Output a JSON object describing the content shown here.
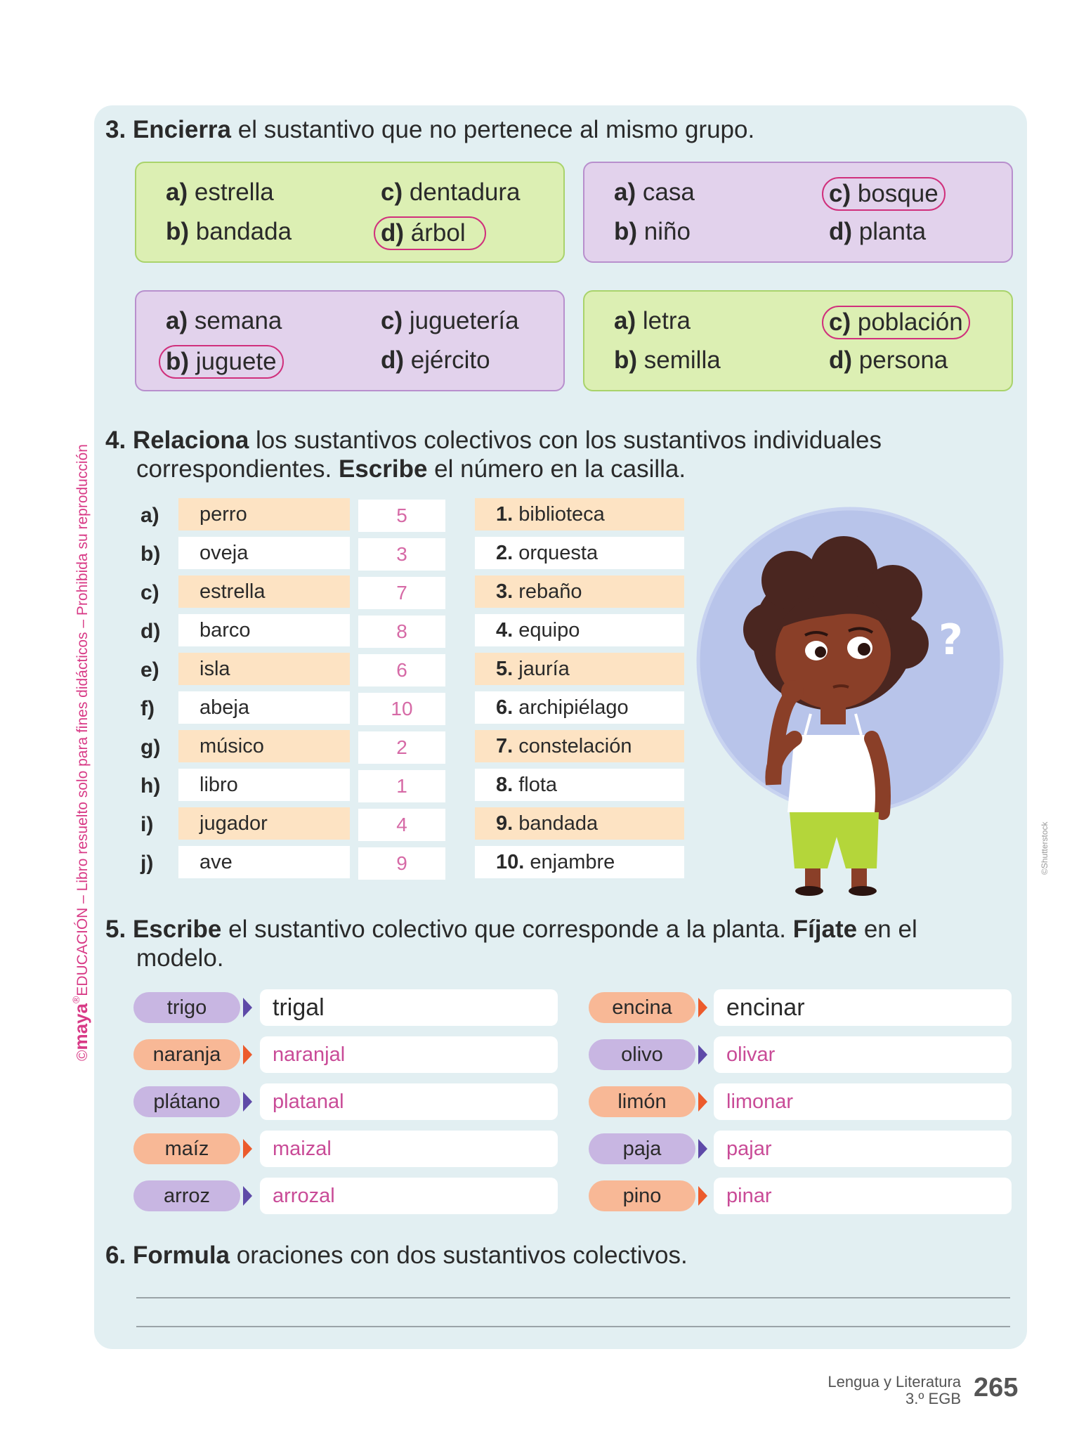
{
  "q3": {
    "number": "3.",
    "bold": "Encierra",
    "rest": " el sustantivo que no pertenece al mismo grupo.",
    "groups": [
      {
        "options": [
          {
            "letter": "a)",
            "word": "estrella"
          },
          {
            "letter": "b)",
            "word": "bandada"
          },
          {
            "letter": "c)",
            "word": "dentadura"
          },
          {
            "letter": "d)",
            "word": "árbol"
          }
        ]
      },
      {
        "options": [
          {
            "letter": "a)",
            "word": "casa"
          },
          {
            "letter": "b)",
            "word": "niño"
          },
          {
            "letter": "c)",
            "word": "bosque"
          },
          {
            "letter": "d)",
            "word": "planta"
          }
        ]
      },
      {
        "options": [
          {
            "letter": "a)",
            "word": "semana"
          },
          {
            "letter": "b)",
            "word": "juguete"
          },
          {
            "letter": "c)",
            "word": "juguetería"
          },
          {
            "letter": "d)",
            "word": "ejército"
          }
        ]
      },
      {
        "options": [
          {
            "letter": "a)",
            "word": "letra"
          },
          {
            "letter": "b)",
            "word": "semilla"
          },
          {
            "letter": "c)",
            "word": "población"
          },
          {
            "letter": "d)",
            "word": "persona"
          }
        ]
      }
    ]
  },
  "q4": {
    "number": "4.",
    "bold1": "Relaciona",
    "text1": " los sustantivos colectivos con los sustantivos individuales",
    "text2": "correspondientes. ",
    "bold2": "Escribe",
    "text3": " el número en la casilla.",
    "rows": [
      {
        "letter": "a)",
        "word": "perro",
        "answer": "5",
        "coll_num": "1.",
        "coll": "biblioteca"
      },
      {
        "letter": "b)",
        "word": "oveja",
        "answer": "3",
        "coll_num": "2.",
        "coll": "orquesta"
      },
      {
        "letter": "c)",
        "word": "estrella",
        "answer": "7",
        "coll_num": "3.",
        "coll": "rebaño"
      },
      {
        "letter": "d)",
        "word": "barco",
        "answer": "8",
        "coll_num": "4.",
        "coll": "equipo"
      },
      {
        "letter": "e)",
        "word": "isla",
        "answer": "6",
        "coll_num": "5.",
        "coll": "jauría"
      },
      {
        "letter": "f)",
        "word": "abeja",
        "answer": "10",
        "coll_num": "6.",
        "coll": "archipiélago"
      },
      {
        "letter": "g)",
        "word": "músico",
        "answer": "2",
        "coll_num": "7.",
        "coll": "constelación"
      },
      {
        "letter": "h)",
        "word": "libro",
        "answer": "1",
        "coll_num": "8.",
        "coll": "flota"
      },
      {
        "letter": "i)",
        "word": "jugador",
        "answer": "4",
        "coll_num": "9.",
        "coll": "bandada"
      },
      {
        "letter": "j)",
        "word": "ave",
        "answer": "9",
        "coll_num": "10.",
        "coll": "enjambre"
      }
    ]
  },
  "q5": {
    "number": "5.",
    "bold1": "Escribe",
    "text1": " el sustantivo colectivo que corresponde a la planta. ",
    "bold2": "Fíjate",
    "text2": " en el",
    "text3": "modelo.",
    "left": [
      {
        "plant": "trigo",
        "answer": "trigal",
        "color": "purple"
      },
      {
        "plant": "naranja",
        "answer": "naranjal",
        "color": "orange"
      },
      {
        "plant": "plátano",
        "answer": "platanal",
        "color": "purple"
      },
      {
        "plant": "maíz",
        "answer": "maizal",
        "color": "orange"
      },
      {
        "plant": "arroz",
        "answer": "arrozal",
        "color": "purple"
      }
    ],
    "right": [
      {
        "plant": "encina",
        "answer": "encinar",
        "color": "orange"
      },
      {
        "plant": "olivo",
        "answer": "olivar",
        "color": "purple"
      },
      {
        "plant": "limón",
        "answer": "limonar",
        "color": "orange"
      },
      {
        "plant": "paja",
        "answer": "pajar",
        "color": "purple"
      },
      {
        "plant": "pino",
        "answer": "pinar",
        "color": "orange"
      }
    ]
  },
  "q6": {
    "number": "6.",
    "bold": "Formula",
    "rest": " oraciones con dos sustantivos colectivos."
  },
  "side_text": {
    "copyright": "©",
    "brand": "maya",
    "reg": "®",
    "rest": "EDUCACIÓN – Libro resuelto solo para fines didácticos – Prohibida su reproducción"
  },
  "credit": "©Shutterstock",
  "footer": {
    "subject": "Lengua y Literatura",
    "grade": "3.º EGB",
    "page": "265"
  },
  "colors": {
    "panel": "#e2eff2",
    "green_box": "#dcefb3",
    "purple_box": "#e2d2ec",
    "circle": "#d0307c",
    "answer_text": "#c94b97",
    "peach_row": "#fde3c3"
  }
}
